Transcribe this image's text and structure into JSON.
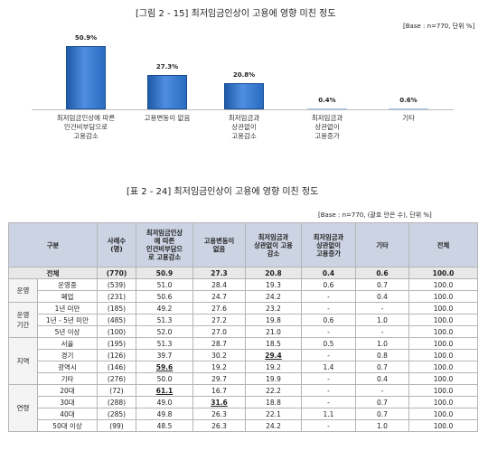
{
  "figure": {
    "title": "[그림 2 - 15] 최저임금인상이 고용에 영향 미친 정도",
    "base": "[Base : n=770, 단위 %]"
  },
  "chart_data": {
    "type": "bar",
    "categories": [
      "최저임금인상에 따른\n인건비부담으로\n고용감소",
      "고용변동이 없음",
      "최저임금과\n상관없이\n고용감소",
      "최저임금과\n상관없이\n고용증가",
      "기타"
    ],
    "values": [
      50.9,
      27.3,
      20.8,
      0.4,
      0.6
    ],
    "value_labels": [
      "50.9%",
      "27.3%",
      "20.8%",
      "0.4%",
      "0.6%"
    ],
    "ylim": [
      0,
      60
    ],
    "bar_color": "#2a6cc0",
    "grid": false
  },
  "table": {
    "title": "[표 2 - 24] 최저임금인상이 고용에 영향 미친 정도",
    "base": "[Base : n=770, (괄호 안은 수), 단위 %]",
    "headers": [
      "구분",
      "사례수\n(명)",
      "최저임금인상\n에 따른\n인건비부담으\n로 고용감소",
      "고용변동이\n없음",
      "최저임금과\n상관없이 고용\n감소",
      "최저임금과\n상관없이\n고용증가",
      "기타",
      "전체"
    ],
    "rows": [
      {
        "group": "전체",
        "sub": "",
        "n": "(770)",
        "v": [
          "50.9",
          "27.3",
          "20.8",
          "0.4",
          "0.6",
          "100.0"
        ]
      },
      {
        "group": "운영",
        "sub": "운영중",
        "n": "(539)",
        "v": [
          "51.0",
          "28.4",
          "19.3",
          "0.6",
          "0.7",
          "100.0"
        ]
      },
      {
        "group": "",
        "sub": "폐업",
        "n": "(231)",
        "v": [
          "50.6",
          "24.7",
          "24.2",
          "-",
          "0.4",
          "100.0"
        ]
      },
      {
        "group": "운영\n기간",
        "sub": "1년 미만",
        "n": "(185)",
        "v": [
          "49.2",
          "27.6",
          "23.2",
          "-",
          "-",
          "100.0"
        ]
      },
      {
        "group": "",
        "sub": "1년 - 5년 미만",
        "n": "(485)",
        "v": [
          "51.3",
          "27.2",
          "19.8",
          "0.6",
          "1.0",
          "100.0"
        ]
      },
      {
        "group": "",
        "sub": "5년 이상",
        "n": "(100)",
        "v": [
          "52.0",
          "27.0",
          "21.0",
          "-",
          "-",
          "100.0"
        ]
      },
      {
        "group": "지역",
        "sub": "서울",
        "n": "(195)",
        "v": [
          "51.3",
          "28.7",
          "18.5",
          "0.5",
          "1.0",
          "100.0"
        ]
      },
      {
        "group": "",
        "sub": "경기",
        "n": "(126)",
        "v": [
          "39.7",
          "30.2",
          "29.4",
          "-",
          "0.8",
          "100.0"
        ]
      },
      {
        "group": "",
        "sub": "광역시",
        "n": "(146)",
        "v": [
          "59.6",
          "19.2",
          "19.2",
          "1.4",
          "0.7",
          "100.0"
        ]
      },
      {
        "group": "",
        "sub": "기타",
        "n": "(276)",
        "v": [
          "50.0",
          "29.7",
          "19.9",
          "-",
          "0.4",
          "100.0"
        ]
      },
      {
        "group": "연령",
        "sub": "20대",
        "n": "(72)",
        "v": [
          "61.1",
          "16.7",
          "22.2",
          "-",
          "-",
          "100.0"
        ]
      },
      {
        "group": "",
        "sub": "30대",
        "n": "(288)",
        "v": [
          "49.0",
          "31.6",
          "18.8",
          "-",
          "0.7",
          "100.0"
        ]
      },
      {
        "group": "",
        "sub": "40대",
        "n": "(285)",
        "v": [
          "49.8",
          "26.3",
          "22.1",
          "1.1",
          "0.7",
          "100.0"
        ]
      },
      {
        "group": "",
        "sub": "50대 이상",
        "n": "(99)",
        "v": [
          "48.5",
          "26.3",
          "24.2",
          "-",
          "1.0",
          "100.0"
        ]
      }
    ]
  }
}
